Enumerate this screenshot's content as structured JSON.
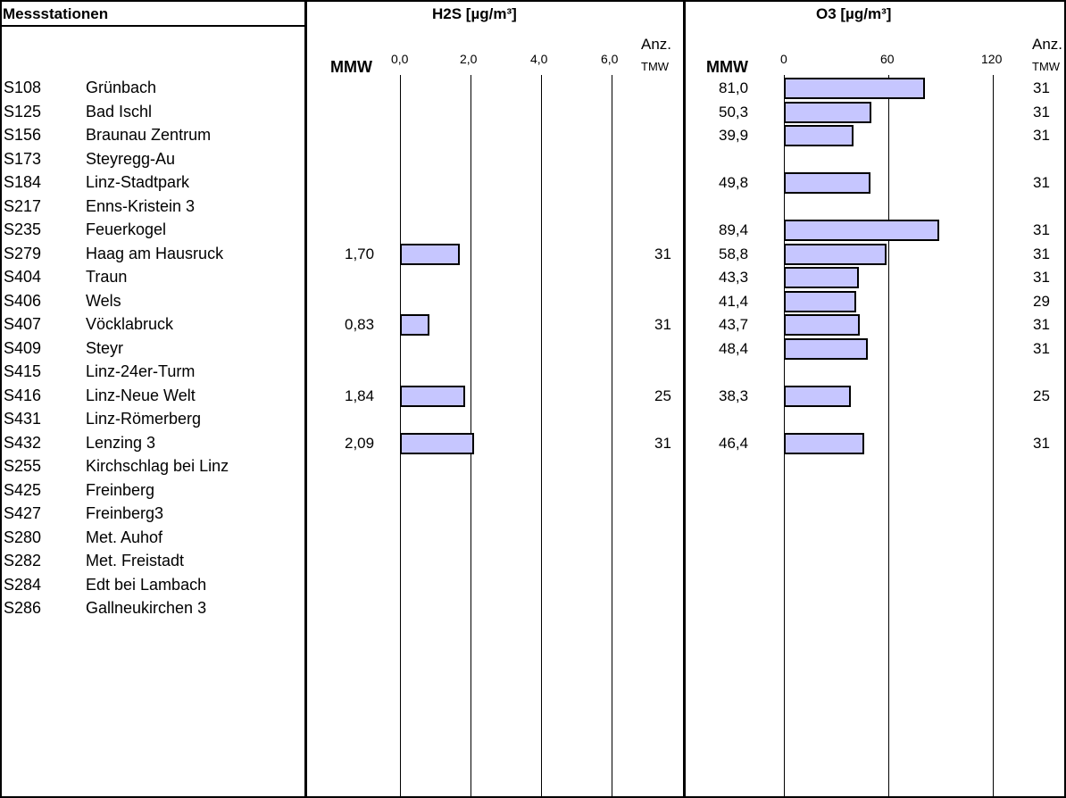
{
  "header": {
    "stations_title": "Messstationen",
    "h2s_title": "H2S [µg/m³]",
    "o3_title": "O3 [µg/m³]",
    "mmw_label": "MMW",
    "anz_label": "Anz.",
    "tmw_label": "TMW"
  },
  "h2s_axis": {
    "ticks": [
      "0,0",
      "2,0",
      "4,0",
      "6,0"
    ]
  },
  "o3_axis": {
    "ticks": [
      "0",
      "60",
      "120"
    ]
  },
  "stations": [
    {
      "code": "S108",
      "name": "Grünbach"
    },
    {
      "code": "S125",
      "name": "Bad Ischl"
    },
    {
      "code": "S156",
      "name": "Braunau Zentrum"
    },
    {
      "code": "S173",
      "name": "Steyregg-Au"
    },
    {
      "code": "S184",
      "name": "Linz-Stadtpark"
    },
    {
      "code": "S217",
      "name": "Enns-Kristein 3"
    },
    {
      "code": "S235",
      "name": "Feuerkogel"
    },
    {
      "code": "S279",
      "name": "Haag am Hausruck"
    },
    {
      "code": "S404",
      "name": "Traun"
    },
    {
      "code": "S406",
      "name": "Wels"
    },
    {
      "code": "S407",
      "name": "Vöcklabruck"
    },
    {
      "code": "S409",
      "name": "Steyr"
    },
    {
      "code": "S415",
      "name": "Linz-24er-Turm"
    },
    {
      "code": "S416",
      "name": "Linz-Neue Welt"
    },
    {
      "code": "S431",
      "name": "Linz-Römerberg"
    },
    {
      "code": "S432",
      "name": "Lenzing 3"
    },
    {
      "code": "S255",
      "name": "Kirchschlag bei Linz"
    },
    {
      "code": "S425",
      "name": "Freinberg"
    },
    {
      "code": "S427",
      "name": "Freinberg3"
    },
    {
      "code": "S280",
      "name": "Met. Auhof"
    },
    {
      "code": "S282",
      "name": "Met. Freistadt"
    },
    {
      "code": "S284",
      "name": "Edt bei Lambach"
    },
    {
      "code": "S286",
      "name": "Gallneukirchen 3"
    }
  ],
  "chart_data": [
    {
      "type": "bar",
      "orientation": "horizontal",
      "title": "H2S [µg/m³]",
      "xlim": [
        0,
        6
      ],
      "ticks": [
        0,
        2,
        4,
        6
      ],
      "grid": true,
      "points": [
        {
          "station": "S279",
          "mmw": 1.7,
          "mmw_label": "1,70",
          "tmw": "31"
        },
        {
          "station": "S407",
          "mmw": 0.83,
          "mmw_label": "0,83",
          "tmw": "31"
        },
        {
          "station": "S416",
          "mmw": 1.84,
          "mmw_label": "1,84",
          "tmw": "25"
        },
        {
          "station": "S432",
          "mmw": 2.09,
          "mmw_label": "2,09",
          "tmw": "31"
        }
      ]
    },
    {
      "type": "bar",
      "orientation": "horizontal",
      "title": "O3 [µg/m³]",
      "xlim": [
        0,
        120
      ],
      "ticks": [
        0,
        60,
        120
      ],
      "grid": true,
      "points": [
        {
          "station": "S108",
          "mmw": 81.0,
          "mmw_label": "81,0",
          "tmw": "31"
        },
        {
          "station": "S125",
          "mmw": 50.3,
          "mmw_label": "50,3",
          "tmw": "31"
        },
        {
          "station": "S156",
          "mmw": 39.9,
          "mmw_label": "39,9",
          "tmw": "31"
        },
        {
          "station": "S184",
          "mmw": 49.8,
          "mmw_label": "49,8",
          "tmw": "31"
        },
        {
          "station": "S235",
          "mmw": 89.4,
          "mmw_label": "89,4",
          "tmw": "31"
        },
        {
          "station": "S279",
          "mmw": 58.8,
          "mmw_label": "58,8",
          "tmw": "31"
        },
        {
          "station": "S404",
          "mmw": 43.3,
          "mmw_label": "43,3",
          "tmw": "31"
        },
        {
          "station": "S406",
          "mmw": 41.4,
          "mmw_label": "41,4",
          "tmw": "29"
        },
        {
          "station": "S407",
          "mmw": 43.7,
          "mmw_label": "43,7",
          "tmw": "31"
        },
        {
          "station": "S409",
          "mmw": 48.4,
          "mmw_label": "48,4",
          "tmw": "31"
        },
        {
          "station": "S416",
          "mmw": 38.3,
          "mmw_label": "38,3",
          "tmw": "25"
        },
        {
          "station": "S432",
          "mmw": 46.4,
          "mmw_label": "46,4",
          "tmw": "31"
        }
      ]
    }
  ]
}
